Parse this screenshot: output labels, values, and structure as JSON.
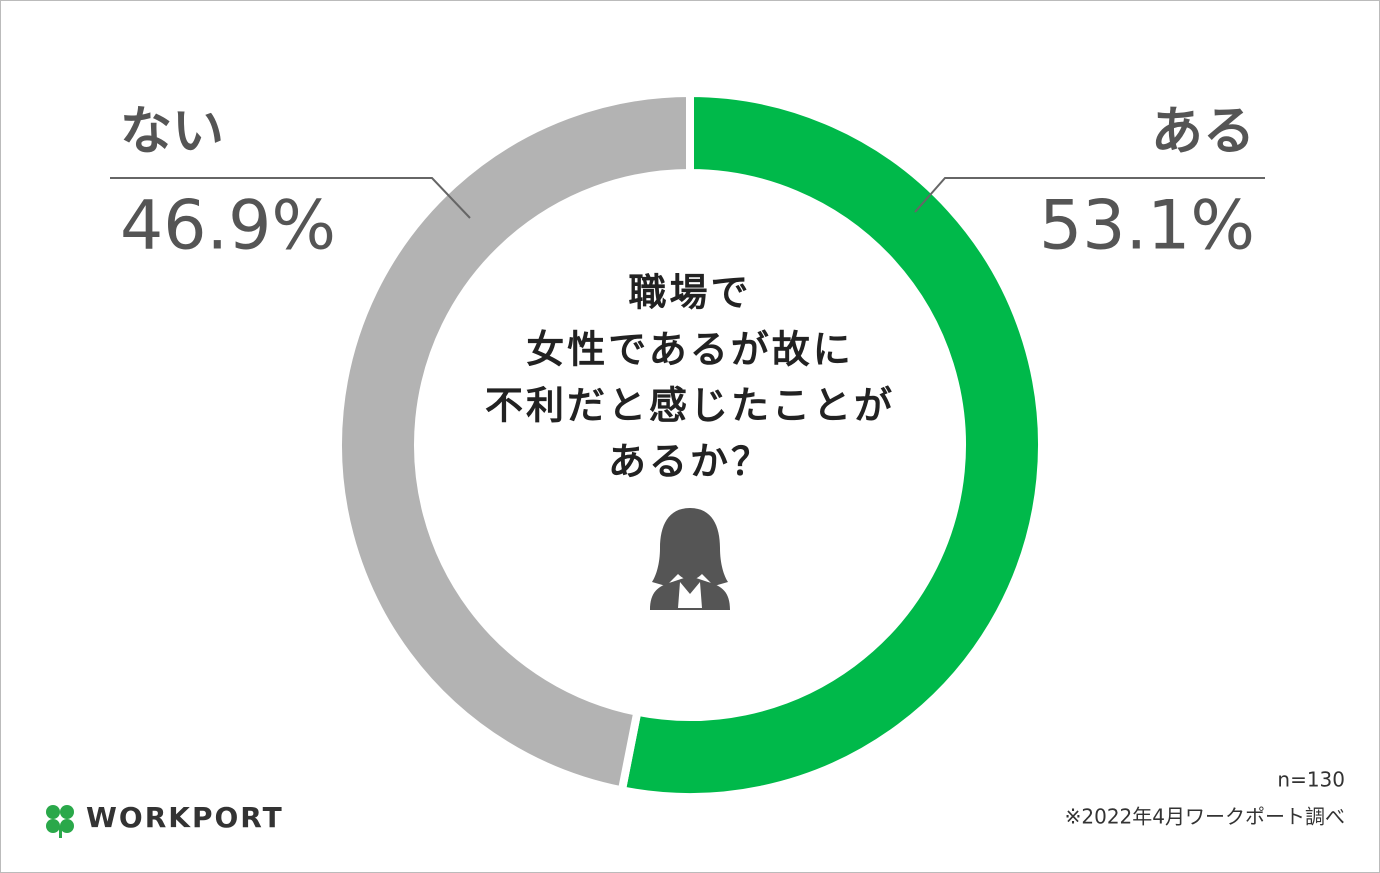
{
  "chart_data": {
    "type": "pie",
    "title": [
      "職場で",
      "女性であるが故に",
      "不利だと感じたことが",
      "あるか？"
    ],
    "categories": [
      "ある",
      "ない"
    ],
    "values": [
      53.1,
      46.9
    ],
    "value_labels": [
      "53.1%",
      "46.9%"
    ],
    "colors": [
      "#00b94a",
      "#b3b3b3"
    ],
    "note": "n=130",
    "source": "※2022年4月ワークポート調べ",
    "logo": "WORKPORT"
  }
}
